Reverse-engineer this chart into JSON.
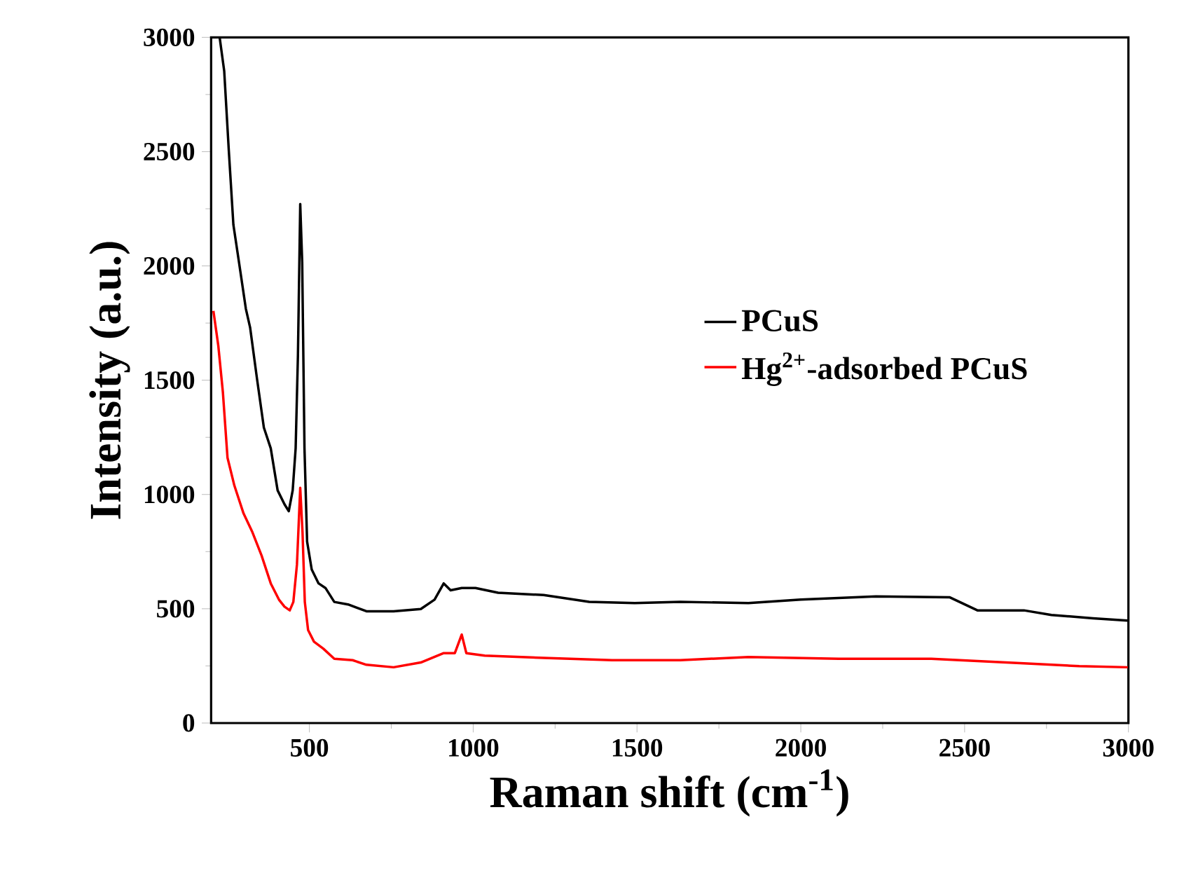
{
  "chart_data": {
    "type": "line",
    "xlabel": "Raman shift (cm$^{-1}$)",
    "ylabel": "Intensity (a.u.)",
    "xlim": [
      200,
      3000
    ],
    "xticks": [
      500,
      1000,
      1500,
      2000,
      2500,
      3000
    ],
    "ylim": [
      0,
      3000
    ],
    "yticks": [
      0,
      500,
      1000,
      1500,
      2000,
      2500,
      3000
    ],
    "grid": false,
    "legend": "right",
    "line_style": "solid",
    "marker": "none",
    "series": [
      {
        "name": "PCuS",
        "color": "#000000",
        "x": [
          226,
          240,
          254,
          268,
          285,
          306,
          319,
          340,
          361,
          382,
          403,
          424,
          437,
          449,
          458,
          465,
          472,
          478,
          485,
          493,
          507,
          528,
          549,
          576,
          618,
          674,
          757,
          840,
          882,
          910,
          931,
          965,
          1007,
          1076,
          1215,
          1354,
          1493,
          1632,
          1840,
          2000,
          2229,
          2455,
          2539,
          2681,
          2765,
          2892,
          2998
        ],
        "values": [
          3000,
          2852,
          2505,
          2180,
          2017,
          1813,
          1731,
          1507,
          1293,
          1202,
          1018,
          957,
          927,
          1018,
          1202,
          1609,
          2271,
          2017,
          1202,
          794,
          672,
          611,
          591,
          530,
          519,
          489,
          489,
          499,
          540,
          611,
          581,
          591,
          591,
          570,
          560,
          530,
          525,
          530,
          525,
          540,
          554,
          550,
          493,
          493,
          473,
          458,
          448
        ]
      },
      {
        "name": "Hg$^{2+}$-adsorbed PCuS",
        "color": "#ff0000",
        "x": [
          207,
          222,
          236,
          250,
          271,
          299,
          326,
          354,
          382,
          407,
          424,
          440,
          451,
          462,
          472,
          479,
          486,
          496,
          514,
          542,
          576,
          632,
          674,
          757,
          840,
          910,
          944,
          965,
          979,
          1035,
          1215,
          1424,
          1632,
          1840,
          2116,
          2398,
          2681,
          2850,
          2998
        ],
        "values": [
          1803,
          1650,
          1446,
          1161,
          1039,
          917,
          835,
          733,
          611,
          540,
          509,
          493,
          530,
          693,
          1029,
          835,
          530,
          407,
          356,
          326,
          281,
          275,
          255,
          244,
          265,
          306,
          306,
          387,
          306,
          295,
          285,
          275,
          275,
          289,
          281,
          281,
          261,
          249,
          244
        ]
      }
    ]
  }
}
